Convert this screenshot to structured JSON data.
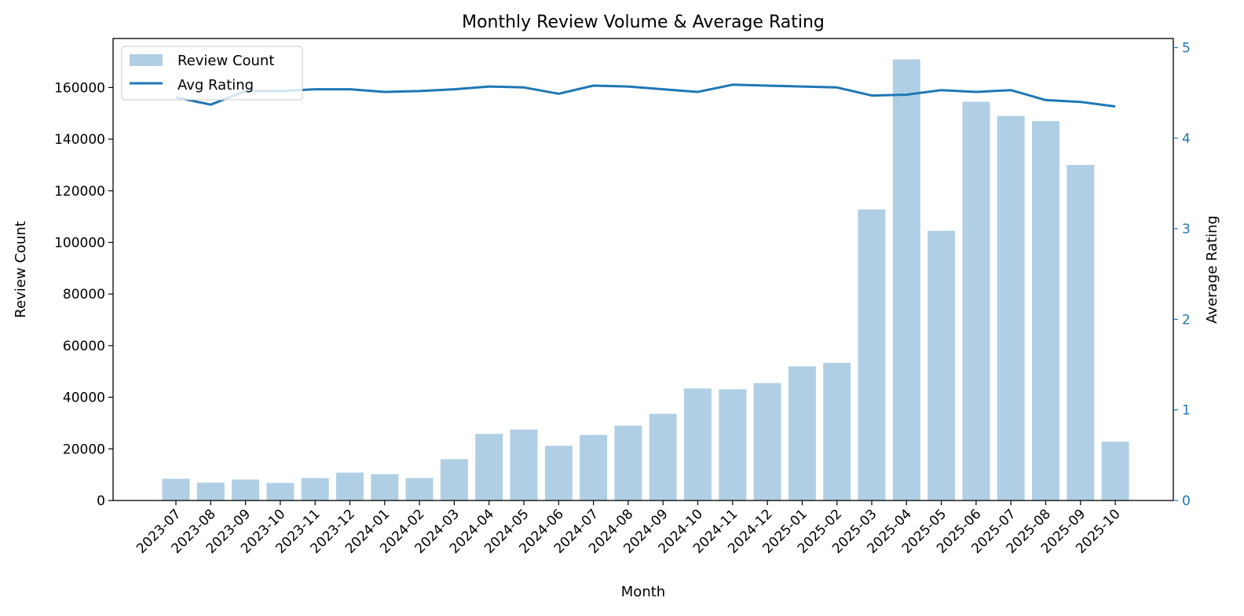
{
  "chart_data": {
    "type": "bar",
    "title": "Monthly Review Volume & Average Rating",
    "xlabel": "Month",
    "ylabel": "Review Count",
    "y2label": "Average Rating",
    "categories": [
      "2023-07",
      "2023-08",
      "2023-09",
      "2023-10",
      "2023-11",
      "2023-12",
      "2024-01",
      "2024-02",
      "2024-03",
      "2024-04",
      "2024-05",
      "2024-06",
      "2024-07",
      "2024-08",
      "2024-09",
      "2024-10",
      "2024-11",
      "2024-12",
      "2025-01",
      "2025-02",
      "2025-03",
      "2025-04",
      "2025-05",
      "2025-06",
      "2025-07",
      "2025-08",
      "2025-09",
      "2025-10"
    ],
    "series": [
      {
        "name": "Review Count",
        "type": "bar",
        "axis": "left",
        "color": "#b0cfe4",
        "values": [
          8400,
          6900,
          8100,
          6800,
          8700,
          10800,
          10200,
          8700,
          16000,
          25800,
          27500,
          21200,
          25400,
          29000,
          33600,
          43400,
          43100,
          45500,
          52000,
          53300,
          112800,
          170900,
          104500,
          154500,
          149000,
          147000,
          130000,
          22800
        ]
      },
      {
        "name": "Avg Rating",
        "type": "line",
        "axis": "right",
        "color": "#1f77b4",
        "values": [
          4.45,
          4.37,
          4.52,
          4.52,
          4.54,
          4.54,
          4.51,
          4.52,
          4.54,
          4.57,
          4.56,
          4.49,
          4.58,
          4.57,
          4.54,
          4.51,
          4.59,
          4.58,
          4.57,
          4.56,
          4.47,
          4.48,
          4.53,
          4.51,
          4.53,
          4.42,
          4.4,
          4.35
        ]
      }
    ],
    "ylim": [
      0,
      179000
    ],
    "y2lim": [
      0,
      5.1
    ],
    "yticks": [
      "0",
      "20000",
      "40000",
      "60000",
      "80000",
      "100000",
      "120000",
      "140000",
      "160000"
    ],
    "y2ticks": [
      "0",
      "1",
      "2",
      "3",
      "4",
      "5"
    ],
    "y2_tick_color": "#1f77b4",
    "legend": "upper-left",
    "grid": false
  }
}
